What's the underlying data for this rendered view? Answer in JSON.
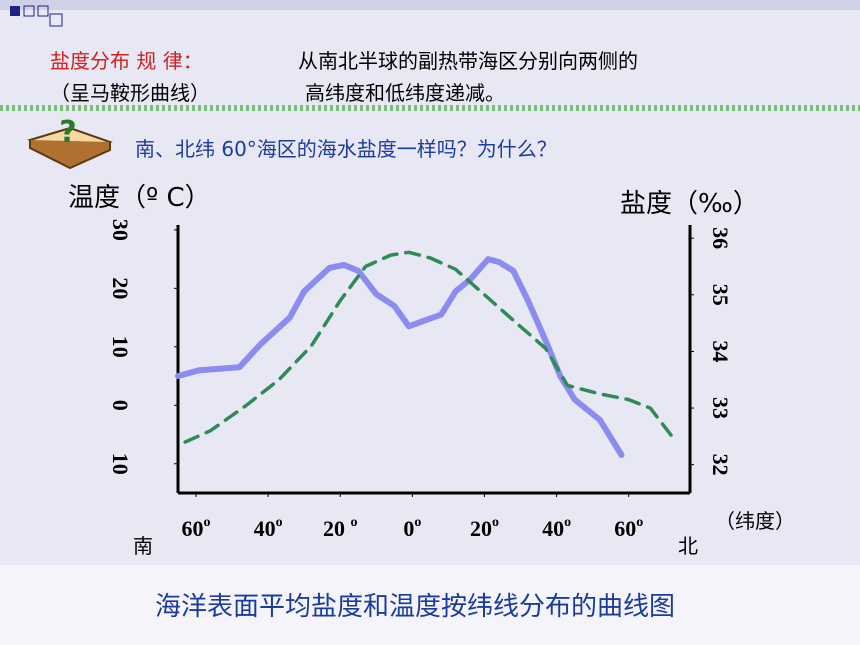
{
  "rule": {
    "label": "盐度分布 规 律：",
    "line1": "从南北半球的副热带海区分别向两侧的",
    "shape": "（呈马鞍形曲线）",
    "line2": "高纬度和低纬度递减。"
  },
  "question": "南、北纬 60°海区的海水盐度一样吗？为什么？",
  "chart_data": {
    "type": "line",
    "title": "海洋表面平均盐度和温度按纬线分布的曲线图",
    "y_label": "温度（º C）",
    "y2_label": "盐度（‰）",
    "x_label": "（纬度）",
    "x_start_label": "南",
    "x_end_label": "北",
    "x_tick_suffix": "o",
    "xlim": [
      -65,
      77
    ],
    "xticks": [
      {
        "value": -60,
        "label": "60"
      },
      {
        "value": -40,
        "label": "40"
      },
      {
        "value": -20,
        "label": "20 "
      },
      0,
      20,
      40,
      60
    ],
    "ylim": [
      -15,
      31
    ],
    "yticks": [
      30,
      20,
      10,
      0,
      {
        "value": -10,
        "label": "10"
      }
    ],
    "y2lim": [
      31.5,
      36.25
    ],
    "y2ticks": [
      36,
      35,
      34,
      33,
      32
    ],
    "series": [
      {
        "name": "温度",
        "color": "#8c8cf0",
        "x": [
          -65,
          -59,
          -48,
          -42,
          -34,
          -30,
          -23,
          -19,
          -15,
          -10,
          -5,
          -1,
          8,
          12,
          16,
          21,
          24,
          28,
          32,
          37,
          41,
          45,
          52,
          58
        ],
        "values": [
          5,
          6,
          6.5,
          10.5,
          15,
          19.5,
          23.5,
          24,
          23,
          19,
          17,
          13.5,
          15.5,
          19.5,
          21.5,
          25,
          24.5,
          23,
          18,
          11,
          5,
          1,
          -2.5,
          -8.5
        ]
      },
      {
        "name": "盐度",
        "color": "#2e8b57",
        "axis": "y2",
        "dashed": true,
        "x": [
          -63,
          -56,
          -46,
          -37,
          -28,
          -20,
          -13,
          -6,
          -1,
          5,
          12,
          20,
          28,
          37,
          43,
          52,
          60,
          66,
          72
        ],
        "values": [
          32.4,
          32.6,
          33.05,
          33.5,
          34.1,
          34.9,
          35.5,
          35.7,
          35.75,
          35.65,
          35.45,
          35,
          34.55,
          34.05,
          33.4,
          33.25,
          33.15,
          33,
          32.5
        ]
      }
    ]
  }
}
